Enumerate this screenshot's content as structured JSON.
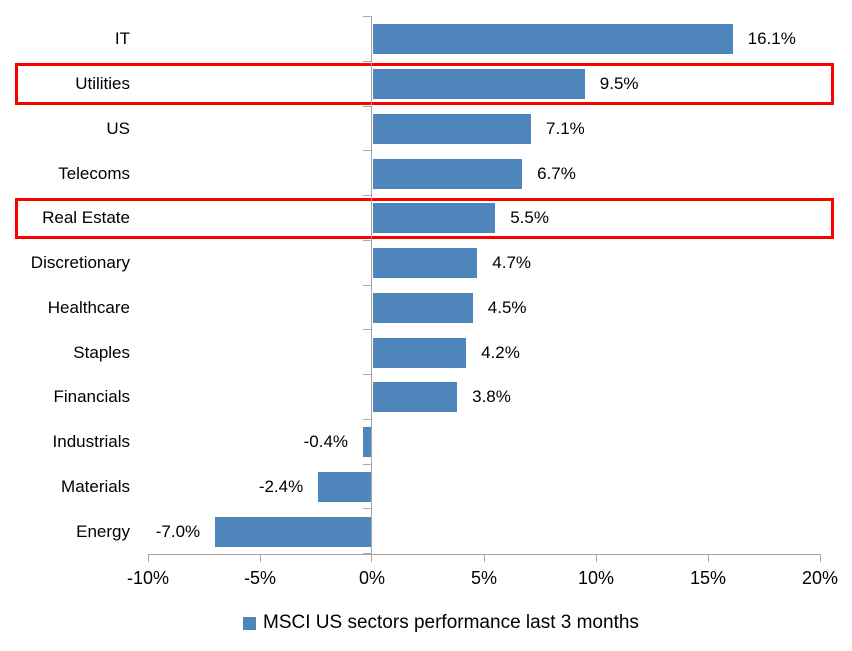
{
  "chart_data": {
    "type": "bar",
    "orientation": "horizontal",
    "categories": [
      "IT",
      "Utilities",
      "US",
      "Telecoms",
      "Real Estate",
      "Discretionary",
      "Healthcare",
      "Staples",
      "Financials",
      "Industrials",
      "Materials",
      "Energy"
    ],
    "values": [
      16.1,
      9.5,
      7.1,
      6.7,
      5.5,
      4.7,
      4.5,
      4.2,
      3.8,
      -0.4,
      -2.4,
      -7.0
    ],
    "data_labels": [
      "16.1%",
      "9.5%",
      "7.1%",
      "6.7%",
      "5.5%",
      "4.7%",
      "4.5%",
      "4.2%",
      "3.8%",
      "-0.4%",
      "-2.4%",
      "-7.0%"
    ],
    "highlighted_categories": [
      "Utilities",
      "Real Estate"
    ],
    "x_axis": {
      "min": -10,
      "max": 20,
      "tick_values": [
        -10,
        -5,
        0,
        5,
        10,
        15,
        20
      ],
      "tick_labels": [
        "-10%",
        "-5%",
        "0%",
        "5%",
        "10%",
        "15%",
        "20%"
      ]
    },
    "legend": {
      "label": "MSCI US sectors performance last 3 months",
      "position": "bottom"
    },
    "grid": false,
    "colors": {
      "bar": "#4e86bb",
      "axis": "#a6a6a6",
      "highlight_box": "#ff0000",
      "text": "#000000",
      "background": "#ffffff"
    }
  }
}
